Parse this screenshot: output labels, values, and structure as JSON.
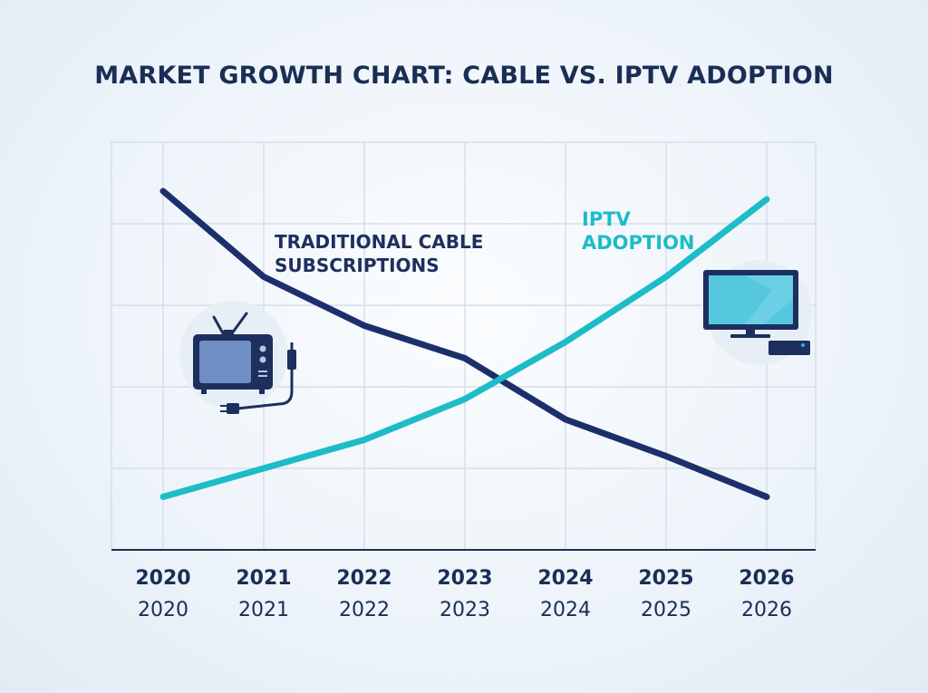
{
  "chart_data": {
    "type": "line",
    "title": "MARKET GROWTH CHART: CABLE VS. IPTV ADOPTION",
    "categories": [
      "2020",
      "2021",
      "2022",
      "2023",
      "2024",
      "2025",
      "2026"
    ],
    "category_labels_secondary": [
      "2020",
      "2021",
      "2022",
      "2023",
      "2024",
      "2025",
      "2026"
    ],
    "series": [
      {
        "name_lines": [
          "TRADITIONAL CABLE",
          "SUBSCRIPTIONS"
        ],
        "color": "#1d2f6b",
        "values": [
          88,
          67,
          55,
          47,
          32,
          23,
          13
        ]
      },
      {
        "name_lines": [
          "IPTV",
          "ADOPTION"
        ],
        "color": "#1cbcc8",
        "values": [
          13,
          20,
          27,
          37,
          51,
          67,
          86
        ]
      }
    ],
    "ylim": [
      0,
      100
    ],
    "grid": true,
    "xlabel": "",
    "ylabel": ""
  },
  "icons": {
    "left": "retro-tv-with-cable-icon",
    "right": "flat-screen-monitor-with-set-top-box-icon"
  },
  "colors": {
    "title": "#1a2e55",
    "grid": "#d0d9e4",
    "axis": "#1a2e55"
  }
}
